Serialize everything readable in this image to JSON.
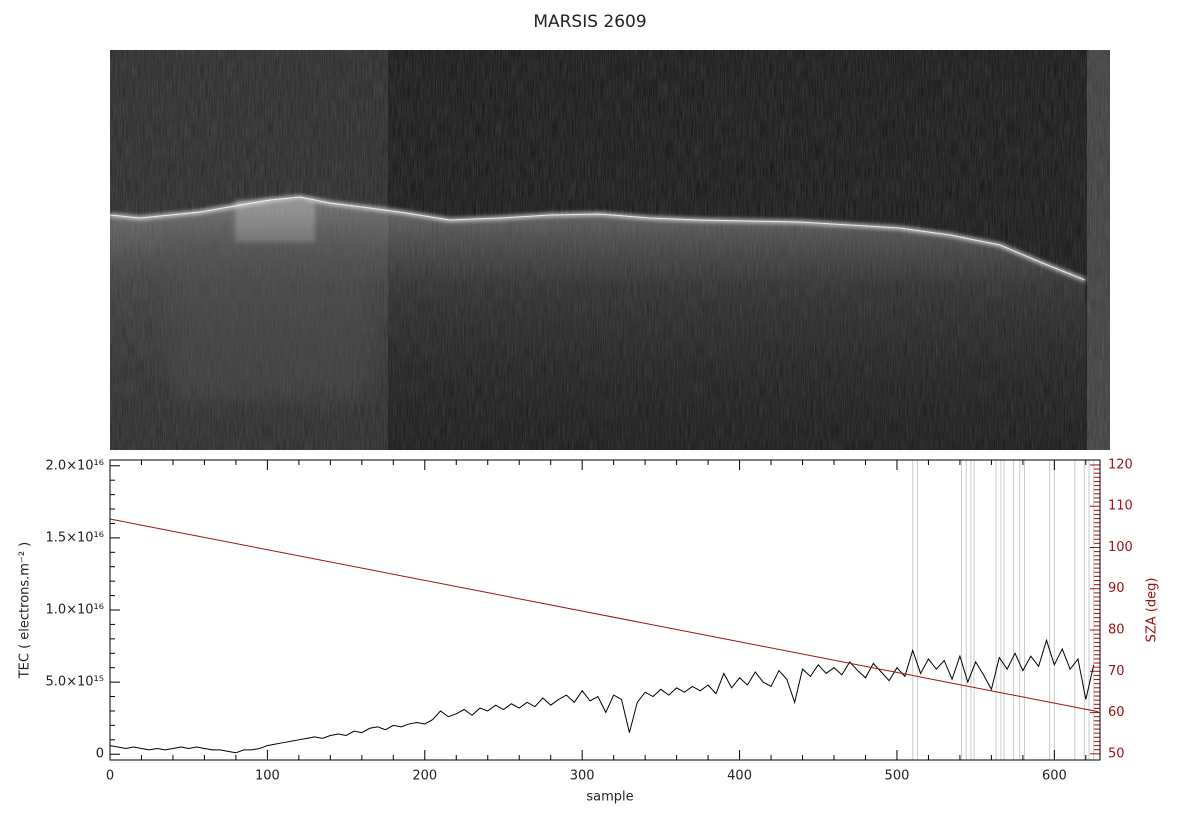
{
  "chart_data": {
    "type": "line",
    "title": "MARSIS 2609",
    "xlabel": "sample",
    "ylabel": "TEC ( electrons.m⁻² )",
    "y2label": "SZA (deg)",
    "xlim": [
      0,
      629
    ],
    "xticks": [
      0,
      100,
      200,
      300,
      400,
      500,
      600
    ],
    "ylim": [
      -400000000000000.0,
      2.04e+16
    ],
    "yticks": [
      0,
      {
        "value": 5000000000000000.0,
        "label": "5.0×10¹⁵"
      },
      {
        "value": 1e+16,
        "label": "1.0×10¹⁶"
      },
      {
        "value": 1.5e+16,
        "label": "1.5×10¹⁶"
      },
      {
        "value": 2e+16,
        "label": "2.0×10¹⁶"
      }
    ],
    "y2lim": [
      48.5,
      121.2
    ],
    "y2ticks": [
      50,
      60,
      70,
      80,
      90,
      100,
      110,
      120
    ],
    "y2color": "#a01010",
    "vlines": [
      510,
      513,
      541,
      544,
      547,
      549,
      563,
      566,
      568,
      574,
      578,
      581,
      597,
      600,
      613,
      619,
      622,
      625
    ],
    "vline_color": "#cccccc",
    "series": [
      {
        "color": "#000000",
        "x": [
          0,
          5,
          10,
          15,
          20,
          25,
          30,
          35,
          40,
          45,
          50,
          55,
          60,
          65,
          70,
          75,
          80,
          85,
          90,
          95,
          100,
          105,
          110,
          115,
          120,
          125,
          130,
          135,
          140,
          145,
          150,
          155,
          160,
          165,
          170,
          175,
          180,
          185,
          190,
          195,
          200,
          205,
          210,
          215,
          220,
          225,
          230,
          235,
          240,
          245,
          250,
          255,
          260,
          265,
          270,
          275,
          280,
          285,
          290,
          295,
          300,
          305,
          310,
          315,
          320,
          325,
          330,
          335,
          340,
          345,
          350,
          355,
          360,
          365,
          370,
          375,
          380,
          385,
          390,
          395,
          400,
          405,
          410,
          415,
          420,
          425,
          430,
          435,
          440,
          445,
          450,
          455,
          460,
          465,
          470,
          475,
          480,
          485,
          490,
          495,
          500,
          505,
          510,
          515,
          520,
          525,
          530,
          535,
          540,
          545,
          550,
          555,
          560,
          565,
          570,
          575,
          580,
          585,
          590,
          595,
          600,
          605,
          610,
          615,
          620,
          625
        ],
        "values": [
          600000000000000.0,
          500000000000000.0,
          400000000000000.0,
          500000000000000.0,
          400000000000000.0,
          300000000000000.0,
          400000000000000.0,
          300000000000000.0,
          400000000000000.0,
          500000000000000.0,
          400000000000000.0,
          500000000000000.0,
          400000000000000.0,
          300000000000000.0,
          300000000000000.0,
          200000000000000.0,
          100000000000000.0,
          300000000000000.0,
          300000000000000.0,
          400000000000000.0,
          600000000000000.0,
          700000000000000.0,
          800000000000000.0,
          900000000000000.0,
          1000000000000000.0,
          1100000000000000.0,
          1200000000000000.0,
          1100000000000000.0,
          1300000000000000.0,
          1400000000000000.0,
          1300000000000000.0,
          1600000000000000.0,
          1500000000000000.0,
          1800000000000000.0,
          1900000000000000.0,
          1700000000000000.0,
          2000000000000000.0,
          1900000000000000.0,
          2100000000000000.0,
          2200000000000000.0,
          2100000000000000.0,
          2400000000000000.0,
          3000000000000000.0,
          2600000000000000.0,
          2800000000000000.0,
          3100000000000000.0,
          2700000000000000.0,
          3200000000000000.0,
          3000000000000000.0,
          3400000000000000.0,
          3100000000000000.0,
          3500000000000000.0,
          3200000000000000.0,
          3600000000000000.0,
          3300000000000000.0,
          3900000000000000.0,
          3400000000000000.0,
          3800000000000000.0,
          4100000000000000.0,
          3600000000000000.0,
          4400000000000000.0,
          3700000000000000.0,
          4000000000000000.0,
          2900000000000000.0,
          4100000000000000.0,
          3800000000000000.0,
          1500000000000000.0,
          3600000000000000.0,
          4300000000000000.0,
          4000000000000000.0,
          4500000000000000.0,
          4100000000000000.0,
          4600000000000000.0,
          4300000000000000.0,
          4700000000000000.0,
          4400000000000000.0,
          4800000000000000.0,
          4200000000000000.0,
          5600000000000000.0,
          4600000000000000.0,
          5300000000000000.0,
          4800000000000000.0,
          5700000000000000.0,
          5000000000000000.0,
          4700000000000000.0,
          5800000000000000.0,
          5200000000000000.0,
          3600000000000000.0,
          5900000000000000.0,
          5400000000000000.0,
          6200000000000000.0,
          5600000000000000.0,
          6000000000000000.0,
          5500000000000000.0,
          6400000000000000.0,
          5800000000000000.0,
          5300000000000000.0,
          6300000000000000.0,
          5700000000000000.0,
          5100000000000000.0,
          6000000000000000.0,
          5400000000000000.0,
          7200000000000000.0,
          5600000000000000.0,
          6600000000000000.0,
          5900000000000000.0,
          6500000000000000.0,
          5200000000000000.0,
          6800000000000000.0,
          5000000000000000.0,
          6400000000000000.0,
          5500000000000000.0,
          4500000000000000.0,
          6700000000000000.0,
          5900000000000000.0,
          7000000000000000.0,
          5800000000000000.0,
          6800000000000000.0,
          6100000000000000.0,
          7900000000000000.0,
          6200000000000000.0,
          7300000000000000.0,
          5900000000000000.0,
          6600000000000000.0,
          3800000000000000.0,
          6200000000000000.0
        ]
      },
      {
        "color": "#a01010",
        "axis": "y2",
        "x": [
          0,
          628
        ],
        "values": [
          106.9,
          60.2
        ]
      }
    ]
  }
}
